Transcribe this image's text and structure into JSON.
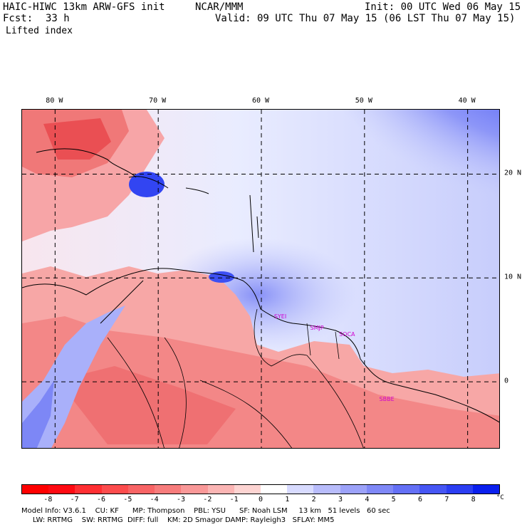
{
  "header": {
    "model": "HAIC-HIWC 13km ARW-GFS init",
    "center": "NCAR/MMM",
    "init": "Init: 00 UTC Wed 06 May 15",
    "fcst_label": "Fcst:",
    "fcst_value": "33 h",
    "valid": "Valid: 09 UTC Thu 07 May 15 (06 LST Thu 07 May 15)",
    "field": "Lifted index"
  },
  "map": {
    "lon_labels": [
      "80 W",
      "70 W",
      "60 W",
      "50 W",
      "40 W"
    ],
    "lon_values": [
      -80,
      -70,
      -60,
      -50,
      -40
    ],
    "lat_labels": [
      "20 N",
      "10 N",
      "0"
    ],
    "lat_values": [
      20,
      10,
      0
    ],
    "extent": {
      "lon_min": -83.2,
      "lon_max": -36.8,
      "lat_min": -6.5,
      "lat_max": 26.2
    },
    "sites": [
      {
        "name": "SYEI",
        "lon": -58.7,
        "lat": 6.5
      },
      {
        "name": "SMJP",
        "lon": -55.2,
        "lat": 5.4
      },
      {
        "name": "SOCA",
        "lon": -52.4,
        "lat": 4.8
      },
      {
        "name": "SBBE",
        "lon": -48.5,
        "lat": -1.4
      }
    ]
  },
  "colorbar": {
    "ticks": [
      "-8",
      "-7",
      "-6",
      "-5",
      "-4",
      "-3",
      "-2",
      "-1",
      "0",
      "1",
      "2",
      "3",
      "4",
      "5",
      "6",
      "7",
      "8"
    ],
    "unit": "°C",
    "colors": [
      "#ff0a12",
      "#ff2f33",
      "#fc4c4d",
      "#f86465",
      "#f77c7c",
      "#f99898",
      "#fbb5b4",
      "#fdd4d2",
      "#ffffff",
      "#d8dbff",
      "#b8bcfb",
      "#9ca2f9",
      "#7f88f7",
      "#6470f6",
      "#4656f4",
      "#2b3ef2",
      "#0a1fee"
    ]
  },
  "footer": {
    "line1": "Model Info: V3.6.1    CU: KF      MP: Thompson    PBL: YSU      SF: Noah LSM     13 km   51 levels   60 sec",
    "line2": "     LW: RRTMG    SW: RRTMG  DIFF: full    KM: 2D Smagor DAMP: Rayleigh3   SFLAY: MM5"
  }
}
